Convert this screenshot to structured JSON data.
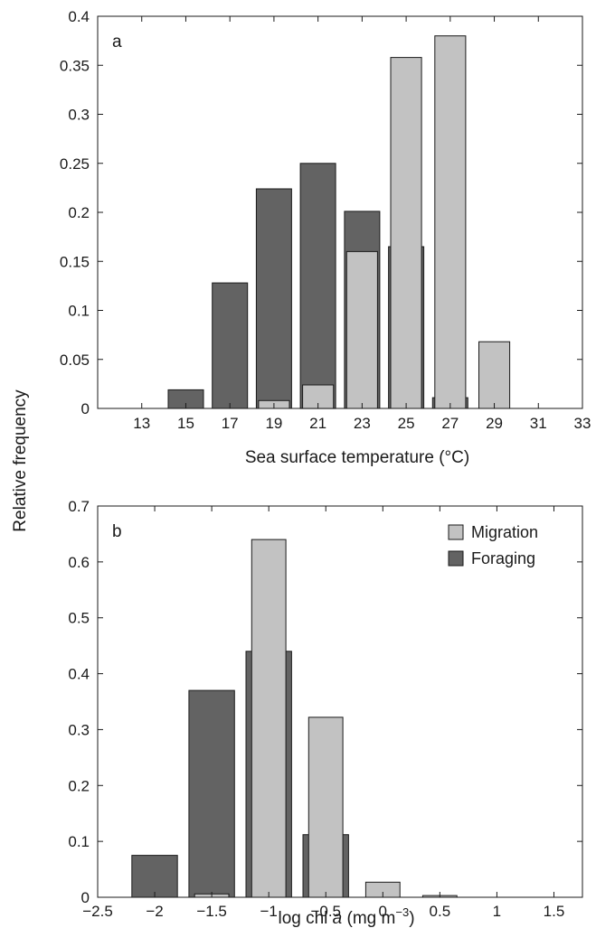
{
  "ylabel": "Relative frequency",
  "colors": {
    "migration": "#c2c2c2",
    "foraging": "#636363",
    "edge": "#1a1a1a"
  },
  "chart_data": [
    {
      "type": "bar",
      "panel_label": "a",
      "xlabel": "Sea surface temperature (°C)",
      "xlim": [
        11,
        33
      ],
      "ylim": [
        0,
        0.4
      ],
      "xticks": [
        13,
        15,
        17,
        19,
        21,
        23,
        25,
        27,
        29,
        31,
        33
      ],
      "xtick_labels": [
        "13",
        "15",
        "17",
        "19",
        "21",
        "23",
        "25",
        "27",
        "29",
        "31",
        "33"
      ],
      "yticks": [
        0,
        0.05,
        0.1,
        0.15,
        0.2,
        0.25,
        0.3,
        0.35,
        0.4
      ],
      "ytick_labels": [
        "0",
        "0.05",
        "0.1",
        "0.15",
        "0.2",
        "0.25",
        "0.3",
        "0.35",
        "0.4"
      ],
      "bin_width": 2,
      "foraging_bar_width": 1.6,
      "migration_bar_width": 1.4,
      "series": [
        {
          "key": "foraging",
          "x": [
            15,
            17,
            19,
            21,
            23,
            25,
            27
          ],
          "values": [
            0.019,
            0.128,
            0.224,
            0.25,
            0.201,
            0.165,
            0.011
          ]
        },
        {
          "key": "migration",
          "x": [
            19,
            21,
            23,
            25,
            27,
            29
          ],
          "values": [
            0.008,
            0.024,
            0.16,
            0.358,
            0.38,
            0.068
          ]
        }
      ]
    },
    {
      "type": "bar",
      "panel_label": "b",
      "xlabel_parts": [
        "log chl ",
        "a",
        " (mg m",
        "−3",
        ")"
      ],
      "xlim": [
        -2.5,
        1.75
      ],
      "ylim": [
        0,
        0.7
      ],
      "xticks": [
        -2.5,
        -2,
        -1.5,
        -1,
        -0.5,
        0,
        0.5,
        1,
        1.5
      ],
      "xtick_labels": [
        "−2.5",
        "−2",
        "−1.5",
        "−1",
        "−0.5",
        "0",
        "0.5",
        "1",
        "1.5"
      ],
      "yticks": [
        0,
        0.1,
        0.2,
        0.3,
        0.4,
        0.5,
        0.6,
        0.7
      ],
      "ytick_labels": [
        "0",
        "0.1",
        "0.2",
        "0.3",
        "0.4",
        "0.5",
        "0.6",
        "0.7"
      ],
      "bin_width": 0.5,
      "foraging_bar_width": 0.4,
      "migration_bar_width": 0.3,
      "legend": {
        "placement": "top-right",
        "entries": [
          {
            "key": "migration",
            "label": "Migration"
          },
          {
            "key": "foraging",
            "label": "Foraging"
          }
        ]
      },
      "series": [
        {
          "key": "foraging",
          "x": [
            -2,
            -1.5,
            -1,
            -0.5,
            0,
            0.5
          ],
          "values": [
            0.075,
            0.37,
            0.44,
            0.112,
            0.0,
            0.0
          ]
        },
        {
          "key": "migration",
          "x": [
            -1.5,
            -1,
            -0.5,
            0,
            0.5
          ],
          "values": [
            0.006,
            0.64,
            0.322,
            0.027,
            0.003
          ]
        }
      ]
    }
  ]
}
